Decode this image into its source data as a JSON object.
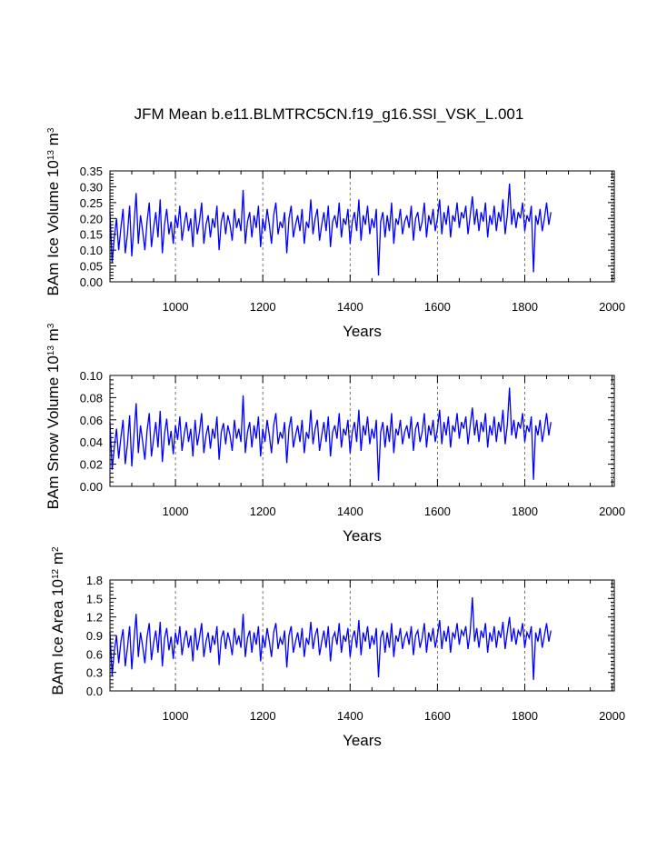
{
  "title": "JFM Mean b.e11.BLMTRC5CN.f19_g16.SSI_VSK_L.001",
  "style": {
    "line_color": "#0000ff",
    "grid_color": "#555555"
  },
  "chart_data": [
    {
      "type": "line",
      "name": "panel-ice-volume",
      "xlabel": "Years",
      "ylabel": {
        "text": "BAm Ice Volume 10",
        "sup1": "13",
        "mid": " m",
        "sup2": "3"
      },
      "xlim": [
        850,
        2005
      ],
      "ylim": [
        0,
        0.35
      ],
      "xticks": [
        1000,
        1200,
        1400,
        1600,
        1800,
        2000
      ],
      "yticks": [
        "0.00",
        "0.05",
        "0.10",
        "0.15",
        "0.20",
        "0.25",
        "0.30",
        "0.35"
      ],
      "grid": "vertical dashed at major x ticks",
      "series": [
        {
          "x_start": 850,
          "x_step": 5,
          "values": [
            0.22,
            0.06,
            0.14,
            0.2,
            0.1,
            0.17,
            0.23,
            0.09,
            0.15,
            0.24,
            0.08,
            0.18,
            0.28,
            0.12,
            0.21,
            0.16,
            0.1,
            0.19,
            0.25,
            0.11,
            0.17,
            0.22,
            0.14,
            0.26,
            0.09,
            0.18,
            0.23,
            0.15,
            0.19,
            0.12,
            0.21,
            0.17,
            0.24,
            0.13,
            0.18,
            0.22,
            0.16,
            0.2,
            0.11,
            0.23,
            0.15,
            0.19,
            0.25,
            0.12,
            0.18,
            0.21,
            0.14,
            0.2,
            0.17,
            0.24,
            0.1,
            0.19,
            0.22,
            0.15,
            0.21,
            0.18,
            0.13,
            0.23,
            0.17,
            0.2,
            0.16,
            0.29,
            0.12,
            0.19,
            0.22,
            0.14,
            0.21,
            0.17,
            0.24,
            0.11,
            0.2,
            0.16,
            0.23,
            0.18,
            0.12,
            0.21,
            0.25,
            0.15,
            0.19,
            0.17,
            0.22,
            0.09,
            0.2,
            0.24,
            0.14,
            0.18,
            0.21,
            0.16,
            0.23,
            0.12,
            0.19,
            0.17,
            0.26,
            0.15,
            0.2,
            0.23,
            0.13,
            0.18,
            0.22,
            0.16,
            0.24,
            0.11,
            0.19,
            0.21,
            0.17,
            0.25,
            0.14,
            0.2,
            0.18,
            0.23,
            0.12,
            0.19,
            0.22,
            0.16,
            0.26,
            0.13,
            0.21,
            0.18,
            0.24,
            0.15,
            0.2,
            0.17,
            0.23,
            0.02,
            0.19,
            0.22,
            0.14,
            0.21,
            0.16,
            0.25,
            0.12,
            0.2,
            0.18,
            0.23,
            0.15,
            0.19,
            0.21,
            0.17,
            0.24,
            0.13,
            0.2,
            0.22,
            0.16,
            0.19,
            0.25,
            0.14,
            0.21,
            0.18,
            0.23,
            0.16,
            0.2,
            0.26,
            0.15,
            0.22,
            0.18,
            0.24,
            0.14,
            0.21,
            0.19,
            0.25,
            0.17,
            0.22,
            0.2,
            0.24,
            0.15,
            0.21,
            0.27,
            0.18,
            0.23,
            0.16,
            0.22,
            0.19,
            0.25,
            0.14,
            0.21,
            0.18,
            0.24,
            0.16,
            0.22,
            0.19,
            0.26,
            0.15,
            0.21,
            0.31,
            0.18,
            0.23,
            0.17,
            0.22,
            0.2,
            0.25,
            0.16,
            0.21,
            0.19,
            0.24,
            0.03,
            0.21,
            0.18,
            0.23,
            0.16,
            0.2,
            0.25,
            0.18,
            0.22
          ]
        }
      ]
    },
    {
      "type": "line",
      "name": "panel-snow-volume",
      "xlabel": "Years",
      "ylabel": {
        "text": "BAm Snow Volume 10",
        "sup1": "13",
        "mid": " m",
        "sup2": "3"
      },
      "xlim": [
        850,
        2005
      ],
      "ylim": [
        0,
        0.1
      ],
      "xticks": [
        1000,
        1200,
        1400,
        1600,
        1800,
        2000
      ],
      "yticks": [
        "0.00",
        "0.02",
        "0.04",
        "0.06",
        "0.08",
        "0.10"
      ],
      "grid": "vertical dashed at major x ticks",
      "series": [
        {
          "x_start": 850,
          "x_step": 5,
          "values": [
            0.058,
            0.015,
            0.035,
            0.052,
            0.025,
            0.044,
            0.06,
            0.02,
            0.038,
            0.064,
            0.018,
            0.046,
            0.075,
            0.03,
            0.055,
            0.04,
            0.024,
            0.05,
            0.066,
            0.027,
            0.043,
            0.058,
            0.035,
            0.068,
            0.022,
            0.047,
            0.061,
            0.037,
            0.05,
            0.029,
            0.055,
            0.042,
            0.063,
            0.032,
            0.047,
            0.058,
            0.04,
            0.052,
            0.027,
            0.06,
            0.037,
            0.049,
            0.066,
            0.03,
            0.046,
            0.055,
            0.034,
            0.052,
            0.043,
            0.063,
            0.024,
            0.049,
            0.057,
            0.038,
            0.055,
            0.046,
            0.032,
            0.06,
            0.043,
            0.052,
            0.04,
            0.082,
            0.03,
            0.049,
            0.058,
            0.035,
            0.055,
            0.043,
            0.063,
            0.027,
            0.052,
            0.04,
            0.06,
            0.046,
            0.03,
            0.055,
            0.066,
            0.038,
            0.049,
            0.043,
            0.058,
            0.021,
            0.052,
            0.063,
            0.035,
            0.046,
            0.055,
            0.04,
            0.06,
            0.03,
            0.049,
            0.043,
            0.069,
            0.038,
            0.052,
            0.06,
            0.032,
            0.046,
            0.058,
            0.04,
            0.063,
            0.027,
            0.049,
            0.055,
            0.043,
            0.066,
            0.035,
            0.052,
            0.046,
            0.06,
            0.03,
            0.049,
            0.058,
            0.04,
            0.069,
            0.032,
            0.055,
            0.046,
            0.063,
            0.038,
            0.052,
            0.043,
            0.06,
            0.005,
            0.049,
            0.058,
            0.035,
            0.055,
            0.04,
            0.066,
            0.03,
            0.052,
            0.046,
            0.06,
            0.038,
            0.049,
            0.055,
            0.043,
            0.063,
            0.032,
            0.052,
            0.058,
            0.04,
            0.049,
            0.066,
            0.035,
            0.055,
            0.046,
            0.06,
            0.04,
            0.052,
            0.069,
            0.038,
            0.058,
            0.046,
            0.063,
            0.035,
            0.055,
            0.049,
            0.066,
            0.043,
            0.058,
            0.052,
            0.063,
            0.038,
            0.055,
            0.071,
            0.046,
            0.06,
            0.04,
            0.058,
            0.049,
            0.066,
            0.035,
            0.055,
            0.046,
            0.063,
            0.04,
            0.058,
            0.049,
            0.069,
            0.038,
            0.055,
            0.089,
            0.046,
            0.06,
            0.043,
            0.058,
            0.052,
            0.066,
            0.04,
            0.055,
            0.049,
            0.063,
            0.006,
            0.055,
            0.046,
            0.06,
            0.04,
            0.052,
            0.066,
            0.046,
            0.058
          ]
        }
      ]
    },
    {
      "type": "line",
      "name": "panel-ice-area",
      "xlabel": "Years",
      "ylabel": {
        "text": "BAm Ice Area 10",
        "sup1": "12",
        "mid": " m",
        "sup2": "2"
      },
      "xlim": [
        850,
        2005
      ],
      "ylim": [
        0,
        1.8
      ],
      "xticks": [
        1000,
        1200,
        1400,
        1600,
        1800,
        2000
      ],
      "yticks": [
        "0.0",
        "0.3",
        "0.6",
        "0.9",
        "1.2",
        "1.5",
        "1.8"
      ],
      "grid": "vertical dashed at major x ticks",
      "series": [
        {
          "x_start": 850,
          "x_step": 5,
          "values": [
            0.95,
            0.25,
            0.65,
            0.9,
            0.45,
            0.8,
            1.0,
            0.4,
            0.7,
            1.05,
            0.35,
            0.82,
            1.25,
            0.55,
            0.95,
            0.72,
            0.45,
            0.88,
            1.1,
            0.5,
            0.78,
            0.98,
            0.62,
            1.12,
            0.4,
            0.85,
            1.02,
            0.66,
            0.88,
            0.52,
            0.95,
            0.75,
            1.05,
            0.58,
            0.82,
            0.98,
            0.7,
            0.9,
            0.48,
            1.02,
            0.66,
            0.86,
            1.1,
            0.55,
            0.8,
            0.95,
            0.62,
            0.9,
            0.75,
            1.05,
            0.42,
            0.86,
            0.98,
            0.68,
            0.95,
            0.8,
            0.58,
            1.02,
            0.75,
            0.9,
            0.7,
            1.25,
            0.55,
            0.86,
            0.98,
            0.62,
            0.95,
            0.75,
            1.05,
            0.48,
            0.9,
            0.7,
            1.02,
            0.8,
            0.55,
            0.95,
            1.1,
            0.68,
            0.86,
            0.75,
            0.98,
            0.38,
            0.9,
            1.05,
            0.62,
            0.8,
            0.95,
            0.7,
            1.02,
            0.55,
            0.86,
            0.75,
            1.12,
            0.68,
            0.9,
            1.02,
            0.58,
            0.8,
            0.98,
            0.7,
            1.05,
            0.48,
            0.86,
            0.95,
            0.75,
            1.1,
            0.62,
            0.9,
            0.8,
            1.02,
            0.55,
            0.86,
            0.98,
            0.7,
            1.15,
            0.58,
            0.95,
            0.8,
            1.05,
            0.68,
            0.9,
            0.75,
            1.02,
            0.22,
            0.86,
            0.98,
            0.62,
            0.95,
            0.7,
            1.1,
            0.55,
            0.9,
            0.8,
            1.02,
            0.68,
            0.86,
            0.95,
            0.75,
            1.05,
            0.58,
            0.9,
            0.98,
            0.7,
            0.86,
            1.1,
            0.62,
            0.95,
            0.8,
            1.02,
            0.7,
            0.9,
            1.15,
            0.68,
            0.98,
            0.8,
            1.05,
            0.62,
            0.95,
            0.86,
            1.1,
            0.75,
            0.98,
            0.9,
            1.05,
            0.68,
            0.95,
            1.52,
            0.8,
            1.02,
            0.7,
            0.98,
            0.86,
            1.1,
            0.62,
            0.95,
            0.8,
            1.05,
            0.7,
            0.98,
            0.86,
            1.12,
            0.68,
            0.95,
            1.2,
            0.8,
            1.02,
            0.75,
            0.98,
            0.9,
            1.1,
            0.7,
            0.95,
            0.86,
            1.05,
            0.18,
            0.95,
            0.8,
            1.02,
            0.7,
            0.9,
            1.1,
            0.8,
            0.98
          ]
        }
      ]
    }
  ]
}
